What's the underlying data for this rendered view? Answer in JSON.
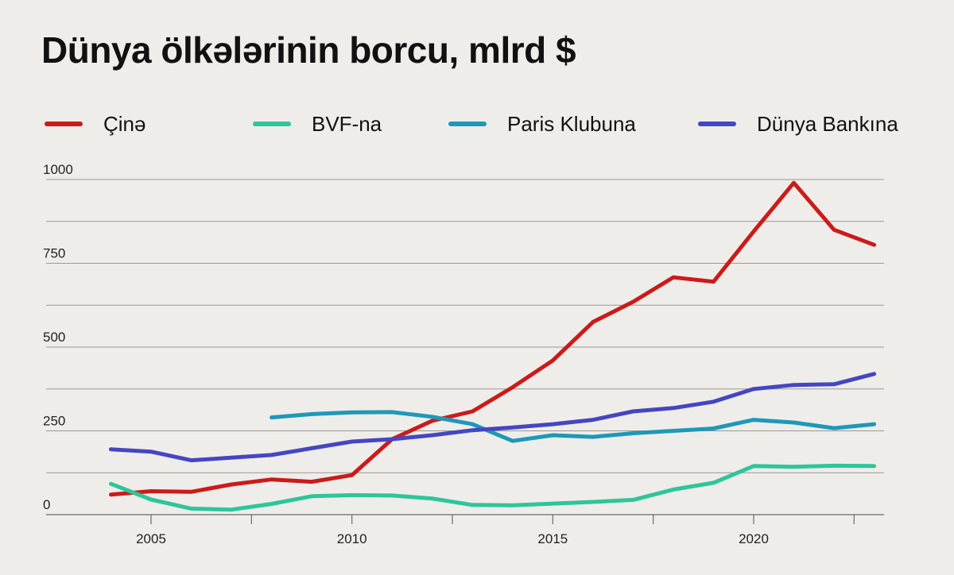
{
  "chart_data": {
    "type": "line",
    "title": "Dünya ölkələrinin borcu, mlrd $",
    "xlabel": "",
    "ylabel": "",
    "xlim": [
      2002,
      2024
    ],
    "ylim": [
      0,
      1000
    ],
    "y_ticks": [
      0,
      250,
      500,
      750,
      1000
    ],
    "y_tick_labels": [
      "0",
      "250",
      "500",
      "750",
      "1000"
    ],
    "x_ticks": [
      2005,
      2010,
      2015,
      2020
    ],
    "x_tick_labels": [
      "2005",
      "2010",
      "2015",
      "2020"
    ],
    "grid": true,
    "legend_position": "top",
    "series": [
      {
        "name": "Çinə",
        "color": "#cc1a1a",
        "x": [
          2004,
          2005,
          2006,
          2007,
          2008,
          2009,
          2010,
          2011,
          2012,
          2013,
          2014,
          2015,
          2016,
          2017,
          2018,
          2019,
          2020,
          2021,
          2022,
          2023
        ],
        "values": [
          60,
          70,
          68,
          90,
          105,
          98,
          118,
          225,
          280,
          308,
          380,
          460,
          575,
          635,
          708,
          695,
          845,
          990,
          850,
          805
        ]
      },
      {
        "name": "BVF-na",
        "color": "#2ec59a",
        "x": [
          2004,
          2005,
          2006,
          2007,
          2008,
          2009,
          2010,
          2011,
          2012,
          2013,
          2014,
          2015,
          2016,
          2017,
          2018,
          2019,
          2020,
          2021,
          2022,
          2023
        ],
        "values": [
          92,
          45,
          18,
          15,
          32,
          55,
          58,
          57,
          48,
          29,
          28,
          33,
          38,
          44,
          75,
          95,
          145,
          143,
          146,
          145
        ]
      },
      {
        "name": "Paris Klubuna",
        "color": "#1f98b8",
        "x": [
          2008,
          2009,
          2010,
          2011,
          2012,
          2013,
          2014,
          2015,
          2016,
          2017,
          2018,
          2019,
          2020,
          2021,
          2022,
          2023
        ],
        "values": [
          290,
          300,
          305,
          306,
          292,
          270,
          220,
          237,
          232,
          243,
          250,
          257,
          283,
          275,
          258,
          270
        ]
      },
      {
        "name": "Dünya Bankına",
        "color": "#4446c2",
        "x": [
          2004,
          2005,
          2006,
          2007,
          2008,
          2009,
          2010,
          2011,
          2012,
          2013,
          2014,
          2015,
          2016,
          2017,
          2018,
          2019,
          2020,
          2021,
          2022,
          2023
        ],
        "values": [
          195,
          188,
          162,
          170,
          178,
          198,
          218,
          225,
          237,
          252,
          260,
          270,
          283,
          308,
          318,
          337,
          375,
          387,
          389,
          420
        ]
      }
    ]
  }
}
